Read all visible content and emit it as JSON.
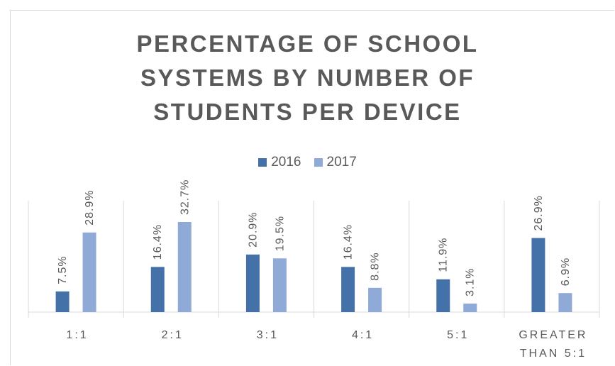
{
  "chart_data": {
    "type": "bar",
    "title_lines": [
      "PERCENTAGE OF SCHOOL",
      "SYSTEMS BY NUMBER OF",
      "STUDENTS PER DEVICE"
    ],
    "categories": [
      [
        "1:1"
      ],
      [
        "2:1"
      ],
      [
        "3:1"
      ],
      [
        "4:1"
      ],
      [
        "5:1"
      ],
      [
        "GREATER",
        "THAN 5:1"
      ]
    ],
    "series": [
      {
        "name": "2016",
        "color": "#4472a8",
        "values": [
          7.5,
          16.4,
          20.9,
          16.4,
          11.9,
          26.9
        ],
        "labels": [
          "7.5%",
          "16.4%",
          "20.9%",
          "16.4%",
          "11.9%",
          "26.9%"
        ]
      },
      {
        "name": "2017",
        "color": "#8faad6",
        "values": [
          28.9,
          32.7,
          19.5,
          8.8,
          3.1,
          6.9
        ],
        "labels": [
          "28.9%",
          "32.7%",
          "19.5%",
          "8.8%",
          "3.1%",
          "6.9%"
        ]
      }
    ],
    "ylim": [
      0,
      40
    ],
    "grid": false,
    "legend": "top-center"
  }
}
